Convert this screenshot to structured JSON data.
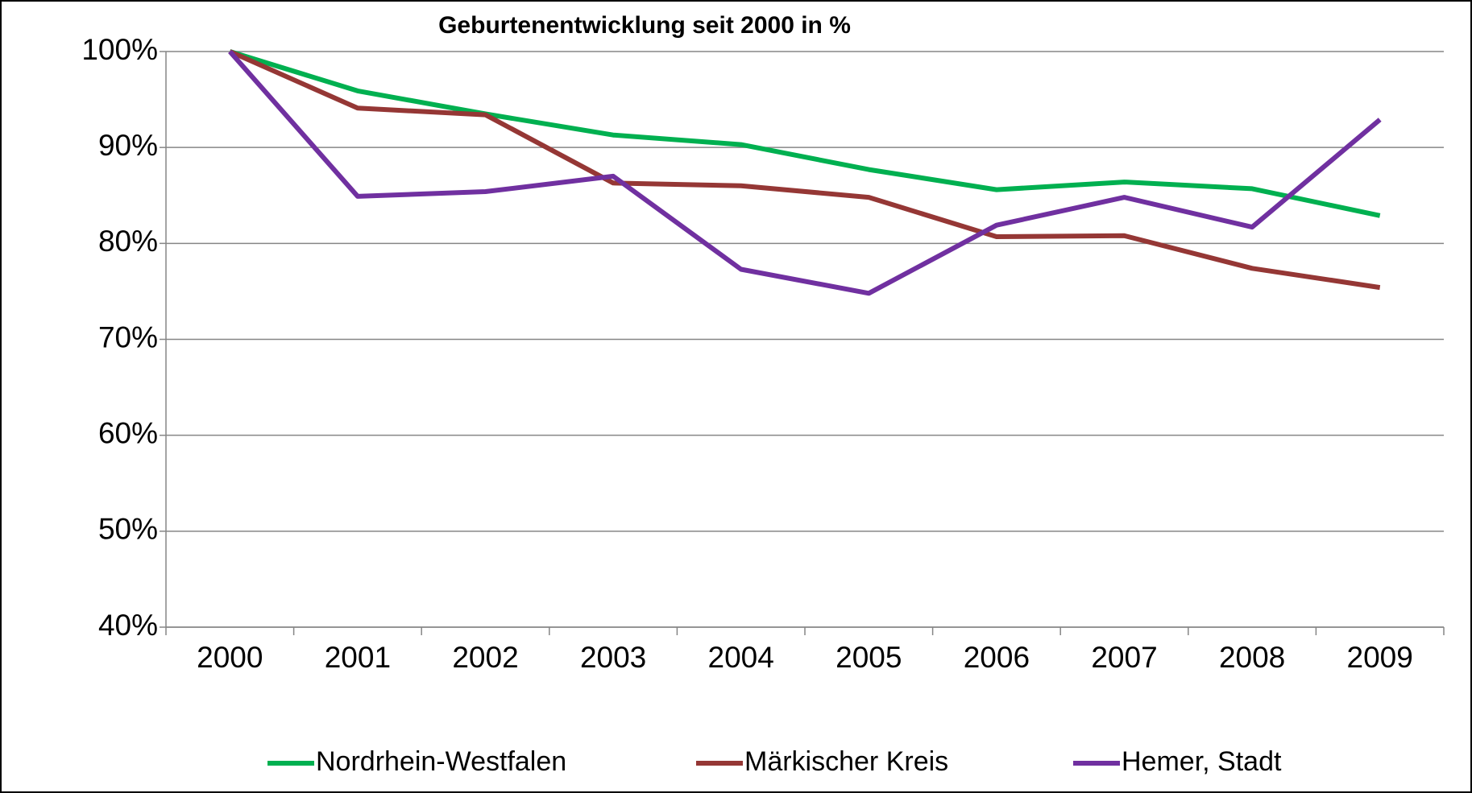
{
  "chart_data": {
    "type": "line",
    "title": "Geburtenentwicklung seit 2000 in %",
    "categories": [
      "2000",
      "2001",
      "2002",
      "2003",
      "2004",
      "2005",
      "2006",
      "2007",
      "2008",
      "2009"
    ],
    "series": [
      {
        "name": "Nordrhein-Westfalen",
        "color": "#00b050",
        "values": [
          100,
          95.9,
          93.5,
          91.3,
          90.3,
          87.7,
          85.6,
          86.4,
          85.7,
          82.9
        ]
      },
      {
        "name": "Märkischer Kreis",
        "color": "#953735",
        "values": [
          100,
          94.1,
          93.4,
          86.3,
          86.0,
          84.8,
          80.7,
          80.8,
          77.4,
          75.4
        ]
      },
      {
        "name": "Hemer, Stadt",
        "color": "#7030a0",
        "values": [
          100,
          84.9,
          85.4,
          87.0,
          77.3,
          74.8,
          81.9,
          84.8,
          81.7,
          92.9
        ]
      }
    ],
    "ylim": [
      40,
      100
    ],
    "yticks": [
      {
        "value": 40,
        "label": "40%"
      },
      {
        "value": 50,
        "label": "50%"
      },
      {
        "value": 60,
        "label": "60%"
      },
      {
        "value": 70,
        "label": "70%"
      },
      {
        "value": 80,
        "label": "80%"
      },
      {
        "value": 90,
        "label": "90%"
      },
      {
        "value": 100,
        "label": "100%"
      }
    ],
    "grid": true,
    "legend": "bottom"
  }
}
